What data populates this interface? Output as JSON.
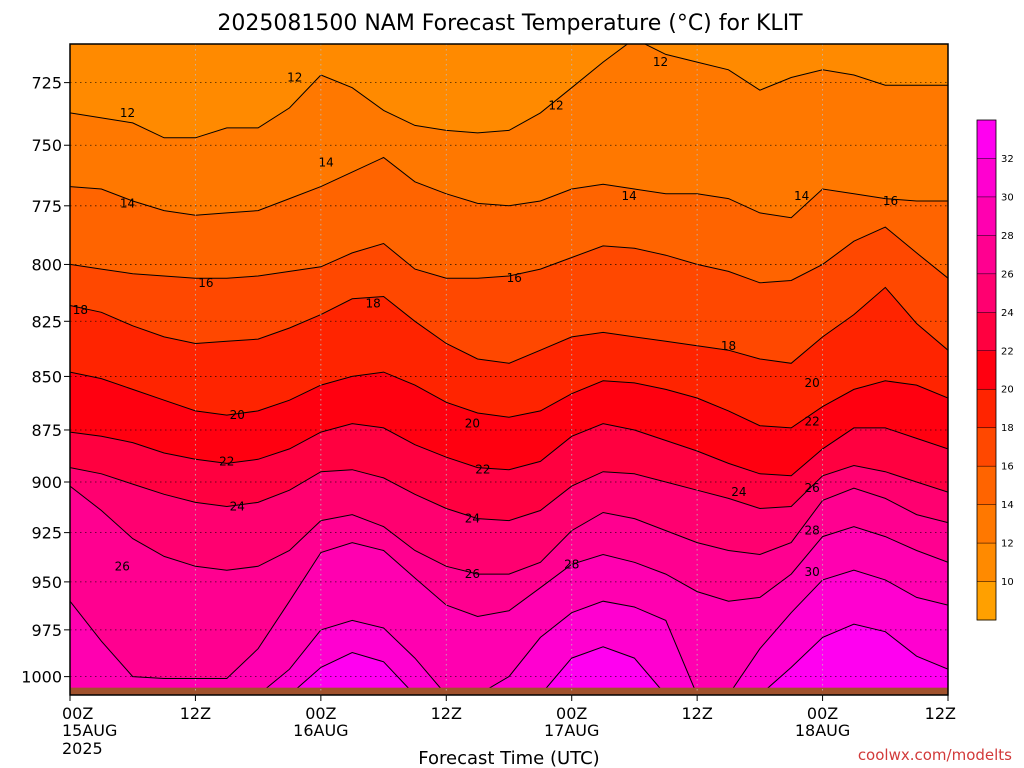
{
  "chart_data": {
    "type": "heatmap",
    "title": "2025081500 NAM Forecast Temperature (°C) for KLIT",
    "xlabel": "Forecast Time (UTC)",
    "ylabel": "",
    "credit": "coolwx.com/modelts",
    "y_scale": "pressure-inverted",
    "ylim": [
      1010,
      710
    ],
    "y_ticks": [
      725,
      750,
      775,
      800,
      825,
      850,
      875,
      900,
      925,
      950,
      975,
      1000
    ],
    "xlim": [
      0,
      84
    ],
    "x_ticks": [
      {
        "hour": 0,
        "line1": "00Z",
        "line2": "15AUG",
        "line3": "2025"
      },
      {
        "hour": 12,
        "line1": "12Z",
        "line2": "",
        "line3": ""
      },
      {
        "hour": 24,
        "line1": "00Z",
        "line2": "16AUG",
        "line3": ""
      },
      {
        "hour": 36,
        "line1": "12Z",
        "line2": "",
        "line3": ""
      },
      {
        "hour": 48,
        "line1": "00Z",
        "line2": "17AUG",
        "line3": ""
      },
      {
        "hour": 60,
        "line1": "12Z",
        "line2": "",
        "line3": ""
      },
      {
        "hour": 72,
        "line1": "00Z",
        "line2": "18AUG",
        "line3": ""
      },
      {
        "hour": 84,
        "line1": "12Z",
        "line2": "",
        "line3": ""
      }
    ],
    "grid": true,
    "colorbar": {
      "position": "right",
      "levels": [
        8,
        10,
        12,
        14,
        16,
        18,
        20,
        22,
        24,
        26,
        28,
        30,
        32,
        34
      ],
      "colors": [
        "#ffa000",
        "#ff8a00",
        "#ff7800",
        "#ff6400",
        "#ff4800",
        "#ff2400",
        "#ff0010",
        "#ff0040",
        "#ff0070",
        "#ff0090",
        "#ff00b0",
        "#ff00d0",
        "#ff00f0"
      ],
      "labels": [
        "10",
        "12",
        "14",
        "16",
        "18",
        "20",
        "22",
        "24",
        "26",
        "28",
        "30",
        "32"
      ]
    },
    "ground_color": "#a0522d",
    "contour_labels": [
      {
        "text": "12",
        "hour": 5.5,
        "p": 737
      },
      {
        "text": "12",
        "hour": 21.5,
        "p": 723
      },
      {
        "text": "12",
        "hour": 46.5,
        "p": 734
      },
      {
        "text": "12",
        "hour": 56.5,
        "p": 717
      },
      {
        "text": "14",
        "hour": 5.5,
        "p": 774
      },
      {
        "text": "14",
        "hour": 24.5,
        "p": 757
      },
      {
        "text": "14",
        "hour": 53.5,
        "p": 771
      },
      {
        "text": "14",
        "hour": 70,
        "p": 771
      },
      {
        "text": "16",
        "hour": 13,
        "p": 808
      },
      {
        "text": "16",
        "hour": 42.5,
        "p": 806
      },
      {
        "text": "16",
        "hour": 78.5,
        "p": 773
      },
      {
        "text": "18",
        "hour": 1,
        "p": 820
      },
      {
        "text": "18",
        "hour": 29,
        "p": 817
      },
      {
        "text": "18",
        "hour": 63,
        "p": 836
      },
      {
        "text": "20",
        "hour": 16,
        "p": 868
      },
      {
        "text": "20",
        "hour": 38.5,
        "p": 872
      },
      {
        "text": "20",
        "hour": 71,
        "p": 853
      },
      {
        "text": "22",
        "hour": 15,
        "p": 890
      },
      {
        "text": "22",
        "hour": 39.5,
        "p": 894
      },
      {
        "text": "22",
        "hour": 71,
        "p": 871
      },
      {
        "text": "24",
        "hour": 16,
        "p": 912
      },
      {
        "text": "24",
        "hour": 38.5,
        "p": 918
      },
      {
        "text": "24",
        "hour": 64,
        "p": 905
      },
      {
        "text": "26",
        "hour": 5,
        "p": 942
      },
      {
        "text": "26",
        "hour": 38.5,
        "p": 946
      },
      {
        "text": "26",
        "hour": 71,
        "p": 903
      },
      {
        "text": "28",
        "hour": 48,
        "p": 941
      },
      {
        "text": "28",
        "hour": 71,
        "p": 924
      },
      {
        "text": "30",
        "hour": 71,
        "p": 945
      }
    ],
    "hours": [
      0,
      3,
      6,
      9,
      12,
      15,
      18,
      21,
      24,
      27,
      30,
      33,
      36,
      39,
      42,
      45,
      48,
      51,
      54,
      57,
      60,
      63,
      66,
      69,
      72,
      75,
      78,
      81,
      84
    ],
    "isotherms": [
      {
        "t": 12,
        "p": [
          737,
          739,
          741,
          747,
          747,
          743,
          743,
          735,
          722,
          727,
          736,
          742,
          744,
          745,
          744,
          737,
          727,
          717,
          708,
          714,
          717,
          720,
          728,
          723,
          720,
          722,
          726,
          726,
          726
        ]
      },
      {
        "t": 14,
        "p": [
          767,
          768,
          773,
          777,
          779,
          778,
          777,
          772,
          767,
          761,
          755,
          765,
          770,
          774,
          775,
          773,
          768,
          766,
          768,
          770,
          770,
          772,
          778,
          780,
          768,
          770,
          772,
          773,
          773
        ]
      },
      {
        "t": 16,
        "p": [
          800,
          802,
          804,
          805,
          806,
          806,
          805,
          803,
          801,
          795,
          791,
          802,
          806,
          806,
          805,
          802,
          797,
          792,
          793,
          796,
          800,
          803,
          808,
          807,
          800,
          790,
          784,
          795,
          806
        ]
      },
      {
        "t": 18,
        "p": [
          818,
          821,
          827,
          832,
          835,
          834,
          833,
          828,
          822,
          815,
          814,
          825,
          835,
          842,
          844,
          838,
          832,
          830,
          832,
          834,
          836,
          838,
          842,
          844,
          832,
          822,
          810,
          826,
          838
        ]
      },
      {
        "t": 20,
        "p": [
          848,
          851,
          856,
          861,
          866,
          868,
          866,
          861,
          854,
          850,
          848,
          854,
          862,
          867,
          869,
          866,
          858,
          852,
          853,
          856,
          860,
          866,
          873,
          874,
          864,
          856,
          852,
          854,
          860
        ]
      },
      {
        "t": 22,
        "p": [
          876,
          878,
          881,
          886,
          889,
          891,
          889,
          884,
          876,
          872,
          874,
          882,
          888,
          893,
          894,
          890,
          878,
          872,
          875,
          880,
          885,
          891,
          896,
          897,
          884,
          874,
          874,
          879,
          884
        ]
      },
      {
        "t": 24,
        "p": [
          893,
          896,
          901,
          906,
          910,
          912,
          910,
          904,
          895,
          894,
          898,
          906,
          913,
          918,
          919,
          914,
          902,
          895,
          896,
          900,
          904,
          908,
          913,
          912,
          897,
          892,
          895,
          900,
          905
        ]
      },
      {
        "t": 26,
        "p": [
          902,
          914,
          928,
          937,
          942,
          944,
          942,
          934,
          919,
          916,
          922,
          934,
          942,
          946,
          946,
          940,
          924,
          915,
          918,
          924,
          930,
          934,
          936,
          930,
          909,
          903,
          908,
          916,
          920
        ]
      },
      {
        "t": 28,
        "p": [
          960,
          981,
          1000,
          1001,
          1001,
          1001,
          985,
          960,
          935,
          930,
          934,
          948,
          962,
          968,
          965,
          953,
          941,
          936,
          940,
          946,
          955,
          960,
          958,
          946,
          927,
          922,
          927,
          934,
          940
        ]
      },
      {
        "t": 30,
        "p": [
          1010,
          1010,
          1010,
          1010,
          1010,
          1010,
          1010,
          996,
          975,
          970,
          974,
          990,
          1010,
          1010,
          1000,
          979,
          966,
          960,
          963,
          970,
          1010,
          1010,
          985,
          966,
          949,
          944,
          949,
          958,
          962
        ]
      },
      {
        "t": 32,
        "p": [
          1010,
          1010,
          1010,
          1010,
          1010,
          1010,
          1010,
          1010,
          995,
          987,
          992,
          1010,
          1010,
          1010,
          1010,
          1010,
          990,
          984,
          990,
          1010,
          1010,
          1010,
          1010,
          995,
          979,
          972,
          976,
          989,
          996
        ]
      }
    ]
  }
}
